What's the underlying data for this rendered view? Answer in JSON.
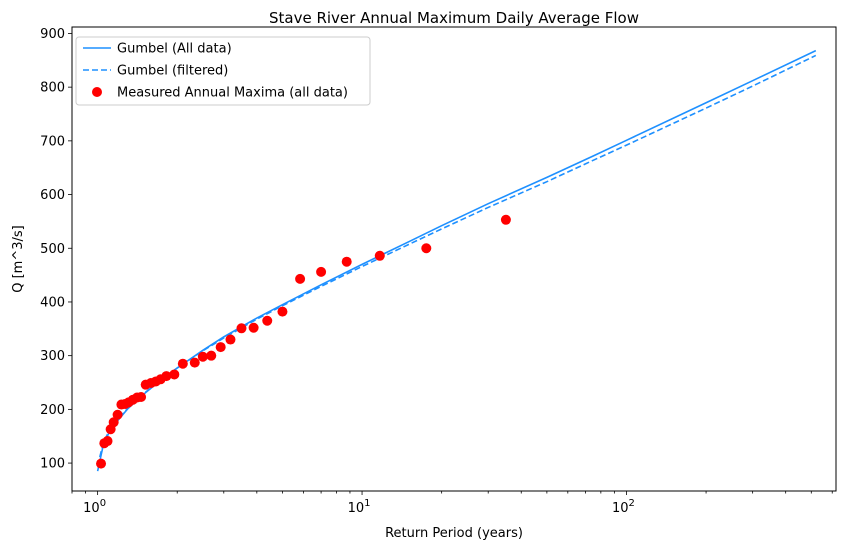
{
  "chart_data": {
    "type": "scatter",
    "title": "Stave River Annual Maximum Daily Average Flow",
    "xlabel": "Return Period (years)",
    "ylabel": "Q [m^3/s]",
    "x_scale": "log",
    "xlim": [
      0.8,
      620
    ],
    "ylim": [
      48,
      912
    ],
    "x_ticks": [
      {
        "value": 1,
        "base": "10",
        "exp": "0"
      },
      {
        "value": 10,
        "base": "10",
        "exp": "1"
      },
      {
        "value": 100,
        "base": "10",
        "exp": "2"
      }
    ],
    "y_ticks": [
      100,
      200,
      300,
      400,
      500,
      600,
      700,
      800,
      900
    ],
    "grid": false,
    "legend_position": "upper-left",
    "series": [
      {
        "name": "Gumbel (All data)",
        "kind": "line",
        "style": "solid",
        "color": "#1e90ff",
        "points": [
          [
            1.0,
            85
          ],
          [
            1.05,
            133
          ],
          [
            1.1,
            155
          ],
          [
            1.2,
            181
          ],
          [
            1.3,
            201
          ],
          [
            1.5,
            229
          ],
          [
            1.75,
            256
          ],
          [
            2.0,
            277
          ],
          [
            2.5,
            310
          ],
          [
            3.0,
            335
          ],
          [
            4.0,
            370
          ],
          [
            5.0,
            395
          ],
          [
            7.0,
            432
          ],
          [
            10.0,
            470
          ],
          [
            15.0,
            512
          ],
          [
            20.0,
            542
          ],
          [
            30.0,
            583
          ],
          [
            50.0,
            632
          ],
          [
            75.0,
            672
          ],
          [
            100.0,
            701
          ],
          [
            200.0,
            771
          ],
          [
            300.0,
            812
          ],
          [
            520.0,
            868
          ]
        ]
      },
      {
        "name": "Gumbel (filtered)",
        "kind": "line",
        "style": "dashed",
        "color": "#1e90ff",
        "points": [
          [
            1.0,
            95
          ],
          [
            1.05,
            137
          ],
          [
            1.1,
            158
          ],
          [
            1.2,
            183
          ],
          [
            1.3,
            202
          ],
          [
            1.5,
            230
          ],
          [
            1.75,
            256
          ],
          [
            2.0,
            277
          ],
          [
            2.5,
            309
          ],
          [
            3.0,
            333
          ],
          [
            4.0,
            368
          ],
          [
            5.0,
            393
          ],
          [
            7.0,
            429
          ],
          [
            10.0,
            466
          ],
          [
            15.0,
            507
          ],
          [
            20.0,
            536
          ],
          [
            30.0,
            576
          ],
          [
            50.0,
            624
          ],
          [
            75.0,
            664
          ],
          [
            100.0,
            692
          ],
          [
            200.0,
            761
          ],
          [
            300.0,
            802
          ],
          [
            520.0,
            859
          ]
        ]
      },
      {
        "name": "Measured Annual Maxima (all data)",
        "kind": "scatter",
        "color": "#ff0000",
        "points": [
          [
            1.03,
            99
          ],
          [
            1.06,
            137
          ],
          [
            1.09,
            141
          ],
          [
            1.12,
            163
          ],
          [
            1.15,
            176
          ],
          [
            1.19,
            190
          ],
          [
            1.23,
            209
          ],
          [
            1.27,
            210
          ],
          [
            1.31,
            213
          ],
          [
            1.36,
            218
          ],
          [
            1.41,
            222
          ],
          [
            1.46,
            223
          ],
          [
            1.52,
            246
          ],
          [
            1.59,
            249
          ],
          [
            1.66,
            252
          ],
          [
            1.73,
            256
          ],
          [
            1.82,
            262
          ],
          [
            1.95,
            265
          ],
          [
            2.1,
            285
          ],
          [
            2.33,
            287
          ],
          [
            2.5,
            298
          ],
          [
            2.69,
            300
          ],
          [
            2.92,
            316
          ],
          [
            3.18,
            330
          ],
          [
            3.5,
            351
          ],
          [
            3.89,
            352
          ],
          [
            4.38,
            365
          ],
          [
            5.0,
            382
          ],
          [
            5.83,
            443
          ],
          [
            7.0,
            456
          ],
          [
            8.75,
            475
          ],
          [
            11.67,
            486
          ],
          [
            17.5,
            500
          ],
          [
            35.0,
            553
          ]
        ]
      }
    ]
  }
}
